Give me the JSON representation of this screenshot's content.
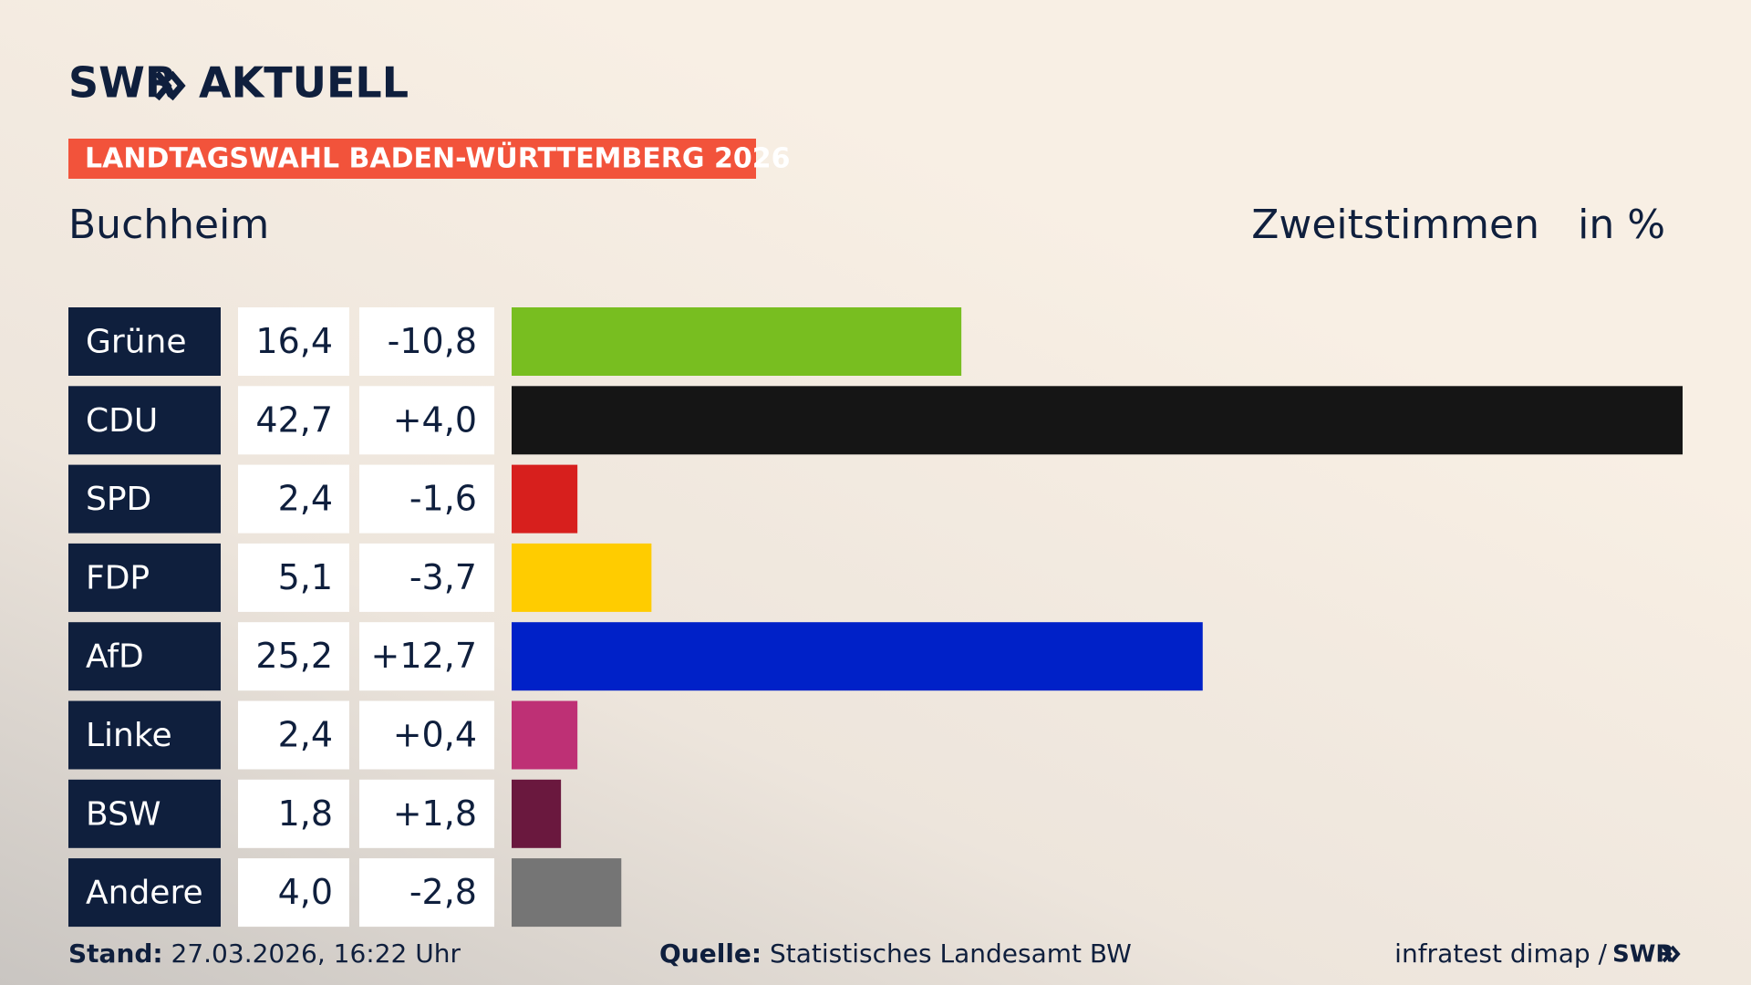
{
  "chart_data": {
    "type": "bar",
    "logo": {
      "left": "SWR",
      "right": "AKTUELL"
    },
    "title": "LANDTAGSWAHL BADEN-WÜRTTEMBERG 2026",
    "subtitle": "Buchheim",
    "measure": "Zweitstimmen",
    "unit": "in %",
    "categories": [
      "Grüne",
      "CDU",
      "SPD",
      "FDP",
      "AfD",
      "Linke",
      "BSW",
      "Andere"
    ],
    "values": [
      16.4,
      42.7,
      2.4,
      5.1,
      25.2,
      2.4,
      1.8,
      4.0
    ],
    "value_labels": [
      "16,4",
      "42,7",
      "2,4",
      "5,1",
      "25,2",
      "2,4",
      "1,8",
      "4,0"
    ],
    "changes": [
      -10.8,
      4.0,
      -1.6,
      -3.7,
      12.7,
      0.4,
      1.8,
      -2.8
    ],
    "change_labels": [
      "-10,8",
      "+4,0",
      "-1,6",
      "-3,7",
      "+12,7",
      "+0,4",
      "+1,8",
      "-2,8"
    ],
    "colors": [
      "#78be20",
      "#151515",
      "#d71f1d",
      "#ffcc00",
      "#0021c8",
      "#be3075",
      "#6a183e",
      "#757575"
    ],
    "footer": {
      "stand_label": "Stand:",
      "stand": "27.03.2026, 16:22 Uhr",
      "source_label": "Quelle:",
      "source": "Statistisches Landesamt BW",
      "credit": "infratest dimap /",
      "credit_brand": "SWR"
    }
  }
}
